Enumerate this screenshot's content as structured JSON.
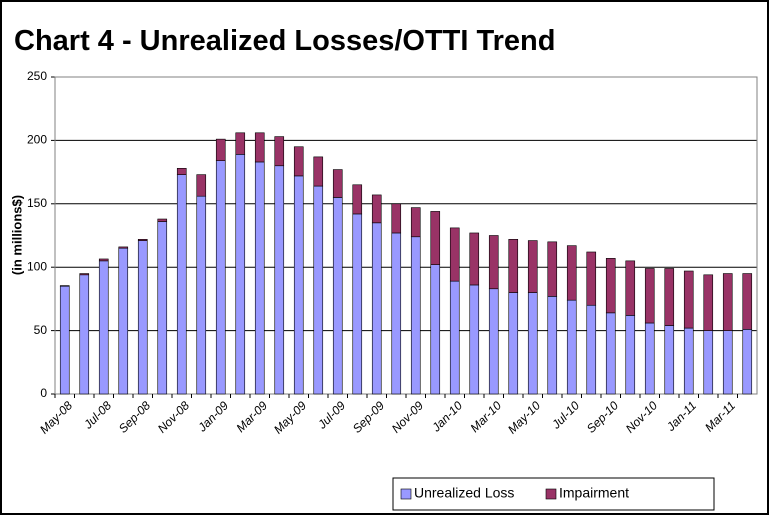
{
  "chart_data": {
    "type": "stacked_bar",
    "title": "Chart 4 - Unrealized Losses/OTTI Trend",
    "y_label": "(in millions$)",
    "categories": [
      "May-08",
      null,
      "Jul-08",
      null,
      "Sep-08",
      null,
      "Nov-08",
      null,
      "Jan-09",
      null,
      "Mar-09",
      null,
      "May-09",
      null,
      "Jul-09",
      null,
      "Sep-09",
      null,
      "Nov-09",
      null,
      "Jan-10",
      null,
      "Mar-10",
      null,
      "May-10",
      null,
      "Jul-10",
      null,
      "Sep-10",
      null,
      "Nov-10",
      null,
      "Jan-11",
      null,
      "Mar-11",
      null
    ],
    "series": [
      {
        "name": "Unrealized Loss",
        "color": "#9999ff",
        "values": [
          85,
          94,
          105,
          115,
          121,
          136,
          173,
          156,
          184,
          189,
          183,
          180,
          172,
          164,
          155,
          142,
          135,
          127,
          124,
          102,
          89,
          86,
          83,
          80,
          80,
          77,
          74,
          70,
          64,
          62,
          56,
          54,
          52,
          50,
          50,
          51
        ]
      },
      {
        "name": "Impairment",
        "color": "#993366",
        "values": [
          0.5,
          1,
          1.5,
          1,
          1,
          2,
          5,
          17,
          17,
          17,
          23,
          23,
          23,
          23,
          22,
          23,
          22,
          23,
          23,
          42,
          42,
          41,
          42,
          42,
          41,
          43,
          43,
          42,
          43,
          43,
          43,
          45,
          45,
          44,
          45,
          44
        ]
      }
    ],
    "ylim": [
      0,
      250
    ],
    "yticks": [
      0,
      50,
      100,
      150,
      200,
      250
    ],
    "grid": true,
    "legend": "bottom-right"
  }
}
